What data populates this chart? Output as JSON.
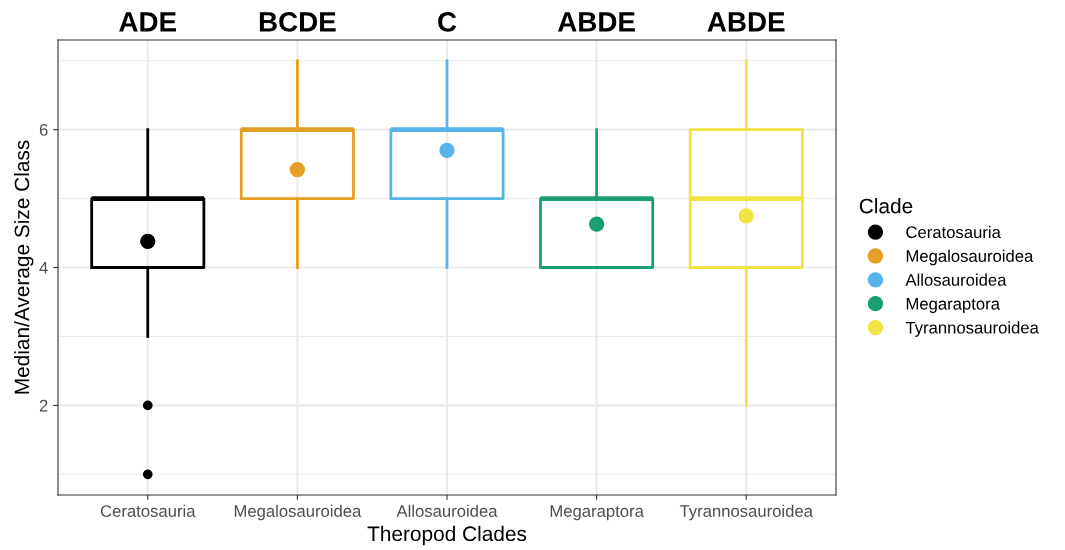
{
  "chart_data": {
    "type": "box",
    "xlabel": "Theropod Clades",
    "ylabel": "Median/Average Size Class",
    "legend_title": "Clade",
    "categories": [
      "Ceratosauria",
      "Megalosauroidea",
      "Allosauroidea",
      "Megaraptora",
      "Tyrannosauroidea"
    ],
    "series": [
      {
        "name": "Ceratosauria",
        "color": "#000000",
        "boxes": [
          {
            "low": 3,
            "q1": 4,
            "median": 5,
            "q3": 5,
            "high": 6,
            "mean": 4.38,
            "outliers": [
              2,
              1
            ]
          },
          null,
          null,
          null,
          null
        ]
      },
      {
        "name": "Megalosauroidea",
        "color": "#e69f25",
        "boxes": [
          null,
          {
            "low": 4,
            "q1": 5,
            "median": 6,
            "q3": 6,
            "high": 7,
            "mean": 5.42
          },
          null,
          null,
          null
        ]
      },
      {
        "name": "Allosauroidea",
        "color": "#56b4e9",
        "boxes": [
          null,
          null,
          {
            "low": 4,
            "q1": 5,
            "median": 6,
            "q3": 6,
            "high": 7,
            "mean": 5.7
          },
          null,
          null
        ]
      },
      {
        "name": "Megaraptora",
        "color": "#1a9e73",
        "boxes": [
          null,
          null,
          null,
          {
            "low": 4,
            "q1": 4,
            "median": 5,
            "q3": 5,
            "high": 6,
            "mean": 4.63
          },
          null
        ]
      },
      {
        "name": "Tyrannosauroidea",
        "color": "#f0e442",
        "boxes": [
          null,
          null,
          null,
          null,
          {
            "low": 2,
            "q1": 4,
            "median": 5,
            "q3": 6,
            "high": 7,
            "mean": 4.75
          }
        ]
      }
    ],
    "annotations": [
      "ADE",
      "BCDE",
      "C",
      "ABDE",
      "ABDE"
    ],
    "ylim": [
      0.7,
      7.3
    ],
    "yticks": [
      2,
      4,
      6
    ],
    "grid": true,
    "legend": "right"
  }
}
